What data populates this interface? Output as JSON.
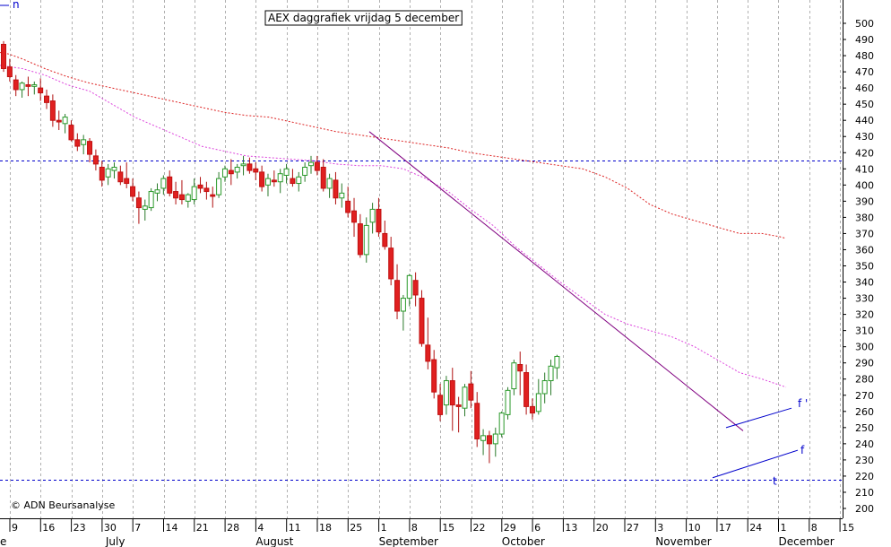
{
  "chart_data": {
    "type": "candlestick",
    "title": "AEX daggrafiek vrijdag 5 december",
    "credit": "© ADN Beursanalyse",
    "top_left_label": "n",
    "y_axis": {
      "position": "right",
      "min": 200,
      "max": 500,
      "step": 10,
      "ticks": [
        200,
        210,
        220,
        230,
        240,
        250,
        260,
        270,
        280,
        290,
        300,
        310,
        320,
        330,
        340,
        350,
        360,
        370,
        380,
        390,
        400,
        410,
        420,
        430,
        440,
        450,
        460,
        470,
        480,
        490,
        500
      ]
    },
    "x_axis": {
      "day_labels": [
        "9",
        "16",
        "23",
        "30",
        "7",
        "14",
        "21",
        "28",
        "4",
        "11",
        "18",
        "25",
        "1",
        "8",
        "15",
        "22",
        "29",
        "6",
        "13",
        "20",
        "27",
        "3",
        "10",
        "17",
        "24",
        "1",
        "8",
        "15"
      ],
      "month_labels": [
        "July",
        "August",
        "September",
        "October",
        "November",
        "December"
      ],
      "month_day_index": [
        3,
        8,
        12,
        16,
        21,
        25
      ],
      "month_label_offset": [
        0,
        -4,
        -4,
        -4,
        -4,
        -4
      ],
      "month_prefix": [
        "e"
      ]
    },
    "horizontal_lines": [
      {
        "value": 415,
        "color": "#0000cc",
        "style": "dashed"
      },
      {
        "value": 218,
        "color": "#0000cc",
        "style": "dashed"
      }
    ],
    "candles": [
      [
        487,
        489,
        470,
        472
      ],
      [
        473,
        478,
        464,
        467
      ],
      [
        465,
        468,
        455,
        459
      ],
      [
        459,
        464,
        454,
        463
      ],
      [
        462,
        467,
        455,
        461
      ],
      [
        461,
        464,
        456,
        462
      ],
      [
        460,
        466,
        452,
        457
      ],
      [
        455,
        459,
        447,
        451
      ],
      [
        452,
        456,
        436,
        440
      ],
      [
        440,
        446,
        434,
        439
      ],
      [
        438,
        444,
        432,
        442
      ],
      [
        437,
        440,
        427,
        428
      ],
      [
        428,
        432,
        421,
        424
      ],
      [
        425,
        431,
        419,
        428
      ],
      [
        427,
        429,
        414,
        419
      ],
      [
        418,
        422,
        409,
        413
      ],
      [
        411,
        415,
        399,
        403
      ],
      [
        405,
        413,
        400,
        410
      ],
      [
        409,
        414,
        404,
        411
      ],
      [
        408,
        412,
        400,
        402
      ],
      [
        404,
        414,
        398,
        401
      ],
      [
        399,
        404,
        390,
        393
      ],
      [
        392,
        396,
        376,
        386
      ],
      [
        385,
        391,
        378,
        387
      ],
      [
        386,
        398,
        384,
        396
      ],
      [
        395,
        401,
        390,
        397
      ],
      [
        398,
        406,
        394,
        404
      ],
      [
        405,
        409,
        393,
        395
      ],
      [
        396,
        402,
        388,
        392
      ],
      [
        394,
        403,
        388,
        391
      ],
      [
        390,
        395,
        386,
        394
      ],
      [
        391,
        404,
        388,
        399
      ],
      [
        400,
        405,
        395,
        398
      ],
      [
        398,
        402,
        391,
        396
      ],
      [
        394,
        399,
        386,
        393
      ],
      [
        394,
        408,
        392,
        404
      ],
      [
        405,
        412,
        402,
        410
      ],
      [
        409,
        416,
        400,
        407
      ],
      [
        408,
        413,
        404,
        411
      ],
      [
        412,
        418,
        406,
        413
      ],
      [
        413,
        417,
        407,
        409
      ],
      [
        410,
        414,
        403,
        408
      ],
      [
        408,
        412,
        396,
        399
      ],
      [
        400,
        407,
        393,
        404
      ],
      [
        403,
        409,
        399,
        402
      ],
      [
        402,
        410,
        395,
        407
      ],
      [
        406,
        413,
        401,
        410
      ],
      [
        404,
        410,
        399,
        401
      ],
      [
        401,
        408,
        396,
        405
      ],
      [
        406,
        414,
        402,
        411
      ],
      [
        412,
        418,
        407,
        414
      ],
      [
        414,
        418,
        406,
        409
      ],
      [
        411,
        416,
        396,
        398
      ],
      [
        398,
        407,
        392,
        404
      ],
      [
        403,
        408,
        388,
        392
      ],
      [
        392,
        401,
        386,
        395
      ],
      [
        390,
        399,
        380,
        383
      ],
      [
        384,
        392,
        368,
        377
      ],
      [
        376,
        382,
        355,
        357
      ],
      [
        357,
        380,
        352,
        375
      ],
      [
        377,
        389,
        370,
        385
      ],
      [
        385,
        392,
        368,
        371
      ],
      [
        370,
        378,
        360,
        362
      ],
      [
        361,
        368,
        338,
        342
      ],
      [
        341,
        351,
        317,
        322
      ],
      [
        322,
        332,
        310,
        330
      ],
      [
        330,
        345,
        325,
        344
      ],
      [
        341,
        346,
        325,
        332
      ],
      [
        330,
        335,
        300,
        302
      ],
      [
        301,
        318,
        286,
        291
      ],
      [
        292,
        298,
        268,
        272
      ],
      [
        270,
        277,
        254,
        258
      ],
      [
        264,
        282,
        258,
        279
      ],
      [
        279,
        287,
        248,
        264
      ],
      [
        264,
        269,
        247,
        263
      ],
      [
        262,
        277,
        257,
        275
      ],
      [
        277,
        285,
        262,
        267
      ],
      [
        265,
        272,
        238,
        243
      ],
      [
        242,
        249,
        233,
        245
      ],
      [
        245,
        248,
        228,
        240
      ],
      [
        240,
        250,
        232,
        246
      ],
      [
        246,
        260,
        244,
        259
      ],
      [
        258,
        275,
        255,
        273
      ],
      [
        274,
        292,
        270,
        290
      ],
      [
        289,
        297,
        270,
        285
      ],
      [
        284,
        289,
        258,
        263
      ],
      [
        263,
        268,
        255,
        259
      ],
      [
        260,
        280,
        258,
        271
      ],
      [
        271,
        284,
        265,
        279
      ],
      [
        279,
        292,
        270,
        288
      ],
      [
        287,
        295,
        280,
        294
      ]
    ],
    "ma_red_dotted": [
      [
        0,
        482
      ],
      [
        10,
        481
      ],
      [
        25,
        478
      ],
      [
        50,
        472
      ],
      [
        75,
        467
      ],
      [
        100,
        463
      ],
      [
        125,
        460
      ],
      [
        150,
        457
      ],
      [
        175,
        454
      ],
      [
        200,
        451
      ],
      [
        225,
        448
      ],
      [
        250,
        445
      ],
      [
        275,
        443
      ],
      [
        300,
        442
      ],
      [
        325,
        439
      ],
      [
        350,
        436
      ],
      [
        375,
        433
      ],
      [
        400,
        431
      ],
      [
        425,
        429
      ],
      [
        450,
        427
      ],
      [
        475,
        425
      ],
      [
        500,
        423
      ],
      [
        525,
        420
      ],
      [
        550,
        418
      ],
      [
        575,
        416
      ],
      [
        600,
        414
      ],
      [
        625,
        412
      ],
      [
        650,
        410
      ],
      [
        675,
        405
      ],
      [
        700,
        398
      ],
      [
        725,
        388
      ],
      [
        750,
        382
      ],
      [
        775,
        378
      ],
      [
        800,
        374
      ],
      [
        825,
        370
      ],
      [
        850,
        370
      ],
      [
        870,
        368
      ],
      [
        877,
        367
      ]
    ],
    "ma_magenta_dotted": [
      [
        0,
        474
      ],
      [
        25,
        472
      ],
      [
        50,
        468
      ],
      [
        75,
        462
      ],
      [
        100,
        458
      ],
      [
        125,
        450
      ],
      [
        150,
        442
      ],
      [
        175,
        436
      ],
      [
        200,
        430
      ],
      [
        225,
        424
      ],
      [
        250,
        421
      ],
      [
        275,
        418
      ],
      [
        300,
        417
      ],
      [
        325,
        416
      ],
      [
        350,
        415
      ],
      [
        375,
        413
      ],
      [
        400,
        412
      ],
      [
        425,
        412
      ],
      [
        450,
        410
      ],
      [
        475,
        404
      ],
      [
        500,
        396
      ],
      [
        525,
        385
      ],
      [
        550,
        375
      ],
      [
        575,
        362
      ],
      [
        600,
        351
      ],
      [
        625,
        340
      ],
      [
        650,
        330
      ],
      [
        675,
        320
      ],
      [
        700,
        314
      ],
      [
        725,
        310
      ],
      [
        750,
        306
      ],
      [
        775,
        300
      ],
      [
        800,
        292
      ],
      [
        825,
        284
      ],
      [
        850,
        280
      ],
      [
        877,
        275
      ]
    ],
    "trend_lines": [
      {
        "from": [
          412,
          433
        ],
        "to": [
          829,
          248
        ],
        "color": "#800080"
      },
      {
        "from": [
          810,
          250
        ],
        "to": [
          883,
          262
        ],
        "color": "#0000cc"
      },
      {
        "from": [
          795,
          219
        ],
        "to": [
          890,
          236
        ],
        "color": "#0000cc"
      }
    ],
    "annotations": [
      {
        "text": "f '",
        "x": 890,
        "y": 265,
        "color": "#0000cc"
      },
      {
        "text": "f",
        "x": 893,
        "y": 236,
        "color": "#0000cc"
      },
      {
        "text": "t",
        "x": 862,
        "y": 217,
        "color": "#0000cc"
      }
    ]
  }
}
